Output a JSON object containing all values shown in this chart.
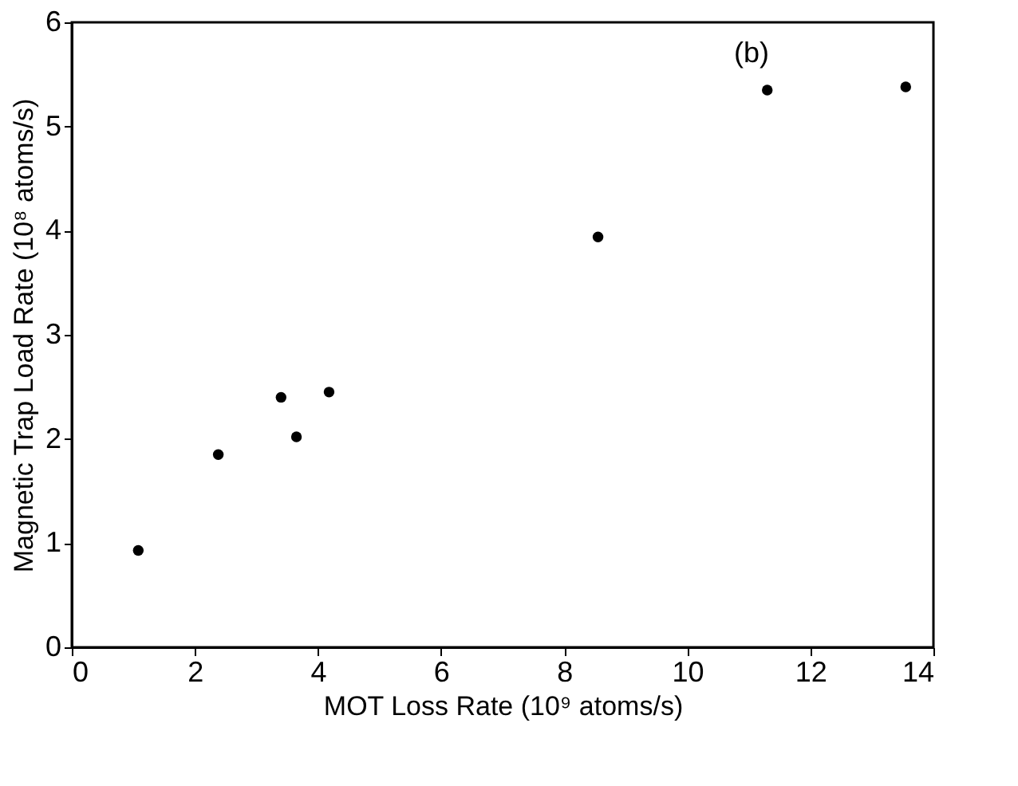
{
  "chart_data": {
    "type": "scatter",
    "xlabel": "MOT Loss Rate (10⁹ atoms/s)",
    "ylabel": "Magnetic Trap Load Rate (10⁸ atoms/s)",
    "x": [
      1.08,
      2.38,
      3.4,
      3.65,
      4.18,
      8.55,
      11.3,
      13.55
    ],
    "series": [
      {
        "color": "#000000",
        "values": [
          0.93,
          1.85,
          2.4,
          2.02,
          2.45,
          3.94,
          5.35,
          5.38
        ]
      }
    ],
    "xlim": [
      0,
      14
    ],
    "xticks": [
      0,
      2,
      4,
      6,
      8,
      10,
      12,
      14
    ],
    "ylim": [
      0,
      6
    ],
    "yticks": [
      0,
      1,
      2,
      3,
      4,
      5,
      6
    ],
    "annotations": [
      "(b)"
    ],
    "marker": "circle",
    "grid": false,
    "legend": false
  }
}
